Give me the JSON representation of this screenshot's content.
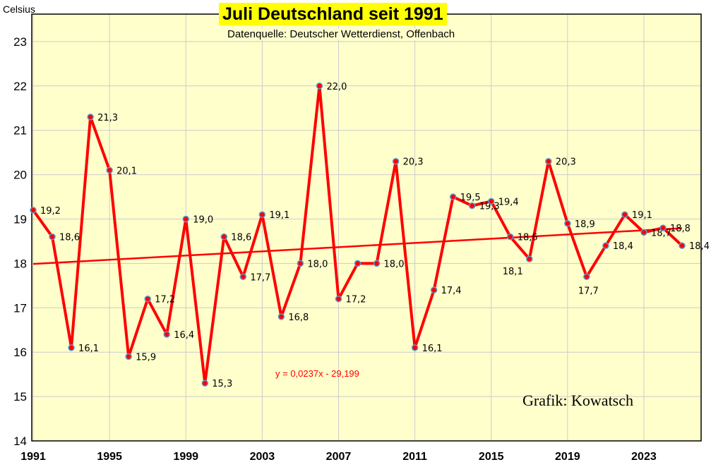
{
  "chart_data": {
    "type": "line",
    "title": "Juli Deutschland seit 1991",
    "subtitle": "Datenquelle: Deutscher Wetterdienst, Offenbach",
    "ylabel": "Celsius",
    "credit": "Grafik: Kowatsch",
    "trend_equation": "y = 0,0237x - 29,199",
    "trend": {
      "slope": 0.0237,
      "intercept": -29.199
    },
    "ylim": [
      14,
      24
    ],
    "yticks": [
      "14",
      "15",
      "16",
      "17",
      "18",
      "19",
      "20",
      "21",
      "22",
      "23"
    ],
    "xticks": [
      "1991",
      "1995",
      "1999",
      "2003",
      "2007",
      "2011",
      "2015",
      "2019",
      "2023"
    ],
    "x": [
      1991,
      1992,
      1993,
      1994,
      1995,
      1996,
      1997,
      1998,
      1999,
      2000,
      2001,
      2002,
      2003,
      2004,
      2005,
      2006,
      2007,
      2008,
      2009,
      2010,
      2011,
      2012,
      2013,
      2014,
      2015,
      2016,
      2017,
      2018,
      2019,
      2020,
      2021,
      2022,
      2023,
      2024,
      2025
    ],
    "values": [
      19.2,
      18.6,
      16.1,
      21.3,
      20.1,
      15.9,
      17.2,
      16.4,
      19.0,
      15.3,
      18.6,
      17.7,
      19.1,
      16.8,
      18.0,
      22.0,
      17.2,
      18.0,
      18.0,
      20.3,
      16.1,
      17.4,
      19.5,
      19.3,
      19.4,
      18.6,
      18.1,
      20.3,
      18.9,
      17.7,
      18.4,
      19.1,
      18.7,
      18.8,
      18.4
    ],
    "labels": [
      "19,2",
      "18,6",
      "16,1",
      "21,3",
      "20,1",
      "15,9",
      "17,2",
      "16,4",
      "19,0",
      "15,3",
      "18,6",
      "17,7",
      "19,1",
      "16,8",
      "18,0",
      "22,0",
      "17,2",
      "",
      "18,0",
      "20,3",
      "16,1",
      "17,4",
      "19,5",
      "19,3",
      "19,4",
      "18,6",
      "18,1",
      "20,3",
      "18,9",
      "17,7",
      "18,4",
      "19,1",
      "18,7",
      "18,8",
      "18,4"
    ],
    "colors": {
      "plot_bg": "#ffffcc",
      "line": "#ff0000",
      "marker": "#5b9bd5"
    },
    "grid": true
  }
}
